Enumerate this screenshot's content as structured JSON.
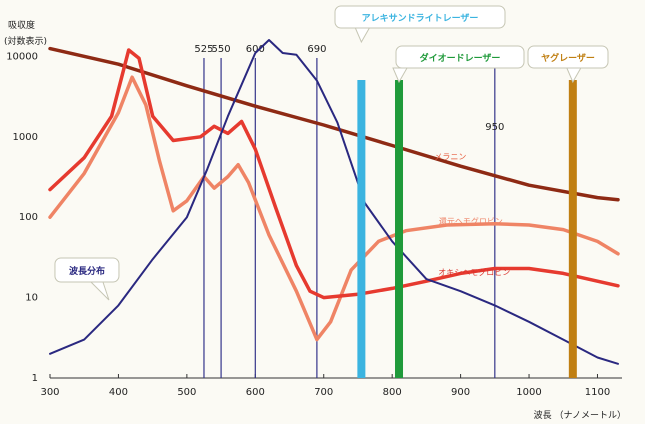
{
  "chart_data": {
    "type": "line",
    "ylabel_line1": "吸収度",
    "ylabel_line2": "(対数表示)",
    "xlabel": "波長 （ナノメートル）",
    "xlim": [
      300,
      1130
    ],
    "ylim": [
      1,
      30000
    ],
    "y_scale": "log",
    "x_ticks": [
      300,
      400,
      500,
      600,
      700,
      800,
      900,
      1000,
      1100
    ],
    "y_ticks": [
      {
        "value": 1,
        "label": "1"
      },
      {
        "value": 10,
        "label": "10"
      },
      {
        "value": 100,
        "label": "100"
      },
      {
        "value": 1000,
        "label": "1000"
      },
      {
        "value": 10000,
        "label": "10000"
      }
    ],
    "wavelength_lines": [
      {
        "x": 525,
        "label": "525"
      },
      {
        "x": 550,
        "label": "550"
      },
      {
        "x": 600,
        "label": "600"
      },
      {
        "x": 690,
        "label": "690"
      },
      {
        "x": 950,
        "label": "950"
      }
    ],
    "lasers": [
      {
        "x": 755,
        "label": "アレキサンドライトレーザー",
        "color": "#3bb4e0"
      },
      {
        "x": 810,
        "label": "ダイオードレーザー",
        "color": "#1f9a3a"
      },
      {
        "x": 1064,
        "label": "ヤグレーザー",
        "color": "#c07f12"
      }
    ],
    "series": [
      {
        "name": "メラニン",
        "color": "#8e2a14",
        "points": [
          [
            300,
            12500
          ],
          [
            400,
            8000
          ],
          [
            500,
            4300
          ],
          [
            600,
            2400
          ],
          [
            700,
            1400
          ],
          [
            800,
            780
          ],
          [
            900,
            430
          ],
          [
            1000,
            250
          ],
          [
            1100,
            175
          ],
          [
            1130,
            165
          ]
        ]
      },
      {
        "name": "オキシヘモグロビン",
        "color": "#e63a2f",
        "points": [
          [
            300,
            220
          ],
          [
            350,
            550
          ],
          [
            390,
            1800
          ],
          [
            415,
            12000
          ],
          [
            430,
            9500
          ],
          [
            450,
            1800
          ],
          [
            480,
            900
          ],
          [
            520,
            1000
          ],
          [
            540,
            1350
          ],
          [
            560,
            1100
          ],
          [
            580,
            1550
          ],
          [
            600,
            700
          ],
          [
            630,
            130
          ],
          [
            660,
            25
          ],
          [
            680,
            12
          ],
          [
            700,
            10
          ],
          [
            750,
            11
          ],
          [
            800,
            13
          ],
          [
            850,
            16
          ],
          [
            900,
            20
          ],
          [
            950,
            23
          ],
          [
            1000,
            23
          ],
          [
            1050,
            20
          ],
          [
            1100,
            16
          ],
          [
            1130,
            14
          ]
        ]
      },
      {
        "name": "還元ヘモグロビン",
        "color": "#ef8465",
        "points": [
          [
            300,
            100
          ],
          [
            350,
            350
          ],
          [
            400,
            2000
          ],
          [
            420,
            5500
          ],
          [
            440,
            2500
          ],
          [
            460,
            500
          ],
          [
            480,
            120
          ],
          [
            500,
            160
          ],
          [
            525,
            320
          ],
          [
            540,
            230
          ],
          [
            560,
            320
          ],
          [
            575,
            450
          ],
          [
            590,
            270
          ],
          [
            620,
            60
          ],
          [
            660,
            12
          ],
          [
            690,
            3
          ],
          [
            710,
            5
          ],
          [
            740,
            22
          ],
          [
            780,
            50
          ],
          [
            820,
            68
          ],
          [
            880,
            80
          ],
          [
            950,
            83
          ],
          [
            1000,
            80
          ],
          [
            1050,
            70
          ],
          [
            1100,
            50
          ],
          [
            1130,
            35
          ]
        ]
      },
      {
        "name": "波長分布",
        "color": "#2a2880",
        "points": [
          [
            300,
            2
          ],
          [
            350,
            3
          ],
          [
            400,
            8
          ],
          [
            450,
            30
          ],
          [
            500,
            100
          ],
          [
            530,
            400
          ],
          [
            560,
            1800
          ],
          [
            600,
            11000
          ],
          [
            620,
            16000
          ],
          [
            640,
            11000
          ],
          [
            660,
            10500
          ],
          [
            690,
            5000
          ],
          [
            720,
            1500
          ],
          [
            760,
            150
          ],
          [
            800,
            50
          ],
          [
            850,
            17
          ],
          [
            900,
            12
          ],
          [
            950,
            8
          ],
          [
            1000,
            5
          ],
          [
            1050,
            3
          ],
          [
            1100,
            1.8
          ],
          [
            1130,
            1.5
          ]
        ]
      }
    ]
  }
}
